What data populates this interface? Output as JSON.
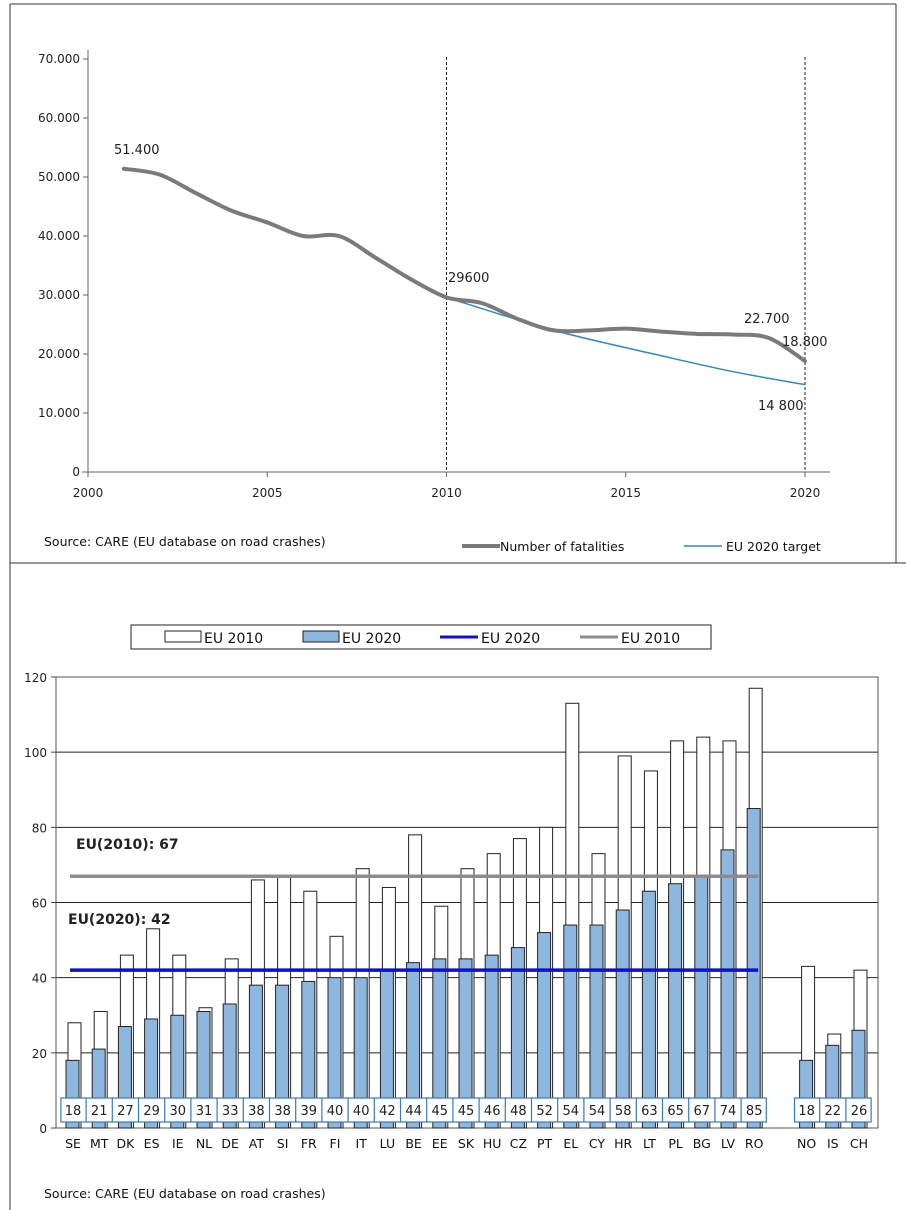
{
  "chart_data": [
    {
      "type": "line",
      "x_range": [
        2000,
        2022
      ],
      "ylim": [
        0,
        70000
      ],
      "x_ticks": [
        "2000",
        "2005",
        "2010",
        "2015",
        "2020"
      ],
      "x_tick_values": [
        2000,
        2005,
        2010,
        2015,
        2020
      ],
      "y_ticks": [
        "0",
        "10.000",
        "20.000",
        "30.000",
        "40.000",
        "50.000",
        "60.000",
        "70.000"
      ],
      "y_tick_values": [
        0,
        10000,
        20000,
        30000,
        40000,
        50000,
        60000,
        70000
      ],
      "reference_lines_x": [
        2010,
        2020
      ],
      "series": [
        {
          "name": "Number of fatalities",
          "color": "#7a7a7a",
          "x": [
            2001,
            2002,
            2003,
            2004,
            2005,
            2006,
            2007,
            2008,
            2009,
            2010,
            2011,
            2012,
            2013,
            2014,
            2015,
            2016,
            2017,
            2018,
            2019,
            2020
          ],
          "y": [
            51400,
            50400,
            47300,
            44300,
            42300,
            40000,
            40000,
            36400,
            32700,
            29600,
            28600,
            25900,
            24000,
            24000,
            24300,
            23800,
            23400,
            23300,
            22700,
            18800
          ]
        },
        {
          "name": "EU 2020 target",
          "color": "#2e86c8",
          "x": [
            2010,
            2013,
            2016,
            2018,
            2020
          ],
          "y": [
            29600,
            24000,
            19700,
            17000,
            14800
          ]
        }
      ],
      "annotations": [
        {
          "text": "51.400"
        },
        {
          "text": "29600"
        },
        {
          "text": "22.700"
        },
        {
          "text": "18.800"
        },
        {
          "text": "14 800"
        }
      ],
      "source": "Source: CARE (EU database on road crashes)",
      "legend": [
        "Number of fatalities",
        "EU 2020 target"
      ]
    },
    {
      "type": "bar",
      "ylim": [
        0,
        120
      ],
      "y_ticks": [
        "0",
        "20",
        "40",
        "60",
        "80",
        "100",
        "120"
      ],
      "y_tick_values": [
        0,
        20,
        40,
        60,
        80,
        100,
        120
      ],
      "categories": [
        "SE",
        "MT",
        "DK",
        "ES",
        "IE",
        "NL",
        "DE",
        "AT",
        "SI",
        "FR",
        "FI",
        "IT",
        "LU",
        "BE",
        "EE",
        "SK",
        "HU",
        "CZ",
        "PT",
        "EL",
        "CY",
        "HR",
        "LT",
        "PL",
        "BG",
        "LV",
        "RO",
        "NO",
        "IS",
        "CH"
      ],
      "series": [
        {
          "name": "EU 2010",
          "color": "#ffffff",
          "values": [
            28,
            31,
            46,
            53,
            46,
            32,
            45,
            66,
            67,
            63,
            51,
            69,
            64,
            78,
            59,
            69,
            73,
            77,
            80,
            113,
            73,
            99,
            95,
            103,
            104,
            103,
            117,
            43,
            25,
            42
          ]
        },
        {
          "name": "EU 2020",
          "color": "#8db7de",
          "values": [
            18,
            21,
            27,
            29,
            30,
            31,
            33,
            38,
            38,
            39,
            40,
            40,
            42,
            44,
            45,
            45,
            46,
            48,
            52,
            54,
            54,
            58,
            63,
            65,
            67,
            74,
            85,
            18,
            22,
            26
          ]
        }
      ],
      "value_labels": [
        "18",
        "21",
        "27",
        "29",
        "30",
        "31",
        "33",
        "38",
        "38",
        "39",
        "40",
        "40",
        "42",
        "44",
        "45",
        "45",
        "46",
        "48",
        "52",
        "54",
        "54",
        "58",
        "63",
        "65",
        "67",
        "74",
        "85",
        "18",
        "22",
        "26"
      ],
      "reference_lines": [
        {
          "name": "EU 2020",
          "value": 42,
          "color": "#1010d0",
          "label": "EU(2020): 42"
        },
        {
          "name": "EU 2010",
          "value": 67,
          "color": "#8c8c8c",
          "label": "EU(2010): 67"
        }
      ],
      "legend": [
        "EU 2010",
        "EU 2020",
        "EU 2020",
        "EU 2010"
      ],
      "source": "Source: CARE (EU database on road crashes)"
    }
  ]
}
